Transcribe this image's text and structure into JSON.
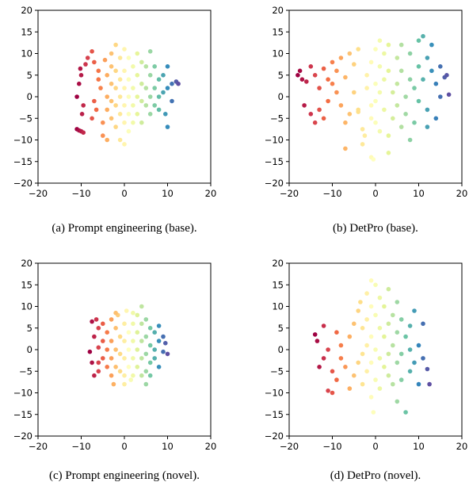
{
  "chart_data": [
    {
      "type": "scatter",
      "caption": "(a) Prompt engineering (base).",
      "xlim": [
        -20,
        20
      ],
      "ylim": [
        -20,
        20
      ],
      "xticks": [
        -20,
        -10,
        0,
        10,
        20
      ],
      "yticks": [
        -20,
        -15,
        -10,
        -5,
        0,
        5,
        10,
        15,
        20
      ],
      "grid": false,
      "colormap": "Spectral",
      "points": [
        [
          -11,
          -7.5
        ],
        [
          -10.5,
          -7.8
        ],
        [
          -10,
          -8
        ],
        [
          -9.5,
          -8.3
        ],
        [
          -11,
          0
        ],
        [
          -10.5,
          3
        ],
        [
          -10,
          5
        ],
        [
          -10.2,
          6.5
        ],
        [
          -9,
          7.5
        ],
        [
          -9.5,
          -2
        ],
        [
          -9.8,
          -4
        ],
        [
          -8.5,
          9
        ],
        [
          -7.5,
          10.5
        ],
        [
          -7,
          8
        ],
        [
          -7,
          -1
        ],
        [
          -7.5,
          -5
        ],
        [
          -6,
          4
        ],
        [
          -6,
          6
        ],
        [
          -5.5,
          2
        ],
        [
          -6.5,
          -3
        ],
        [
          -5,
          -6
        ],
        [
          -4,
          -10
        ],
        [
          -5,
          -9
        ],
        [
          -4.5,
          8.5
        ],
        [
          -4,
          5
        ],
        [
          -4,
          0
        ],
        [
          -4,
          -3
        ],
        [
          -3,
          10
        ],
        [
          -3,
          7
        ],
        [
          -3,
          3
        ],
        [
          -3,
          -1
        ],
        [
          -3,
          -5
        ],
        [
          -2,
          12
        ],
        [
          -2,
          6
        ],
        [
          -2,
          2
        ],
        [
          -2,
          -2
        ],
        [
          -2,
          -7
        ],
        [
          -1,
          9
        ],
        [
          -1,
          4
        ],
        [
          -1,
          0
        ],
        [
          -1,
          -4
        ],
        [
          -1,
          -10
        ],
        [
          0,
          11
        ],
        [
          0,
          6
        ],
        [
          0,
          2
        ],
        [
          0,
          -2
        ],
        [
          0,
          -6
        ],
        [
          0,
          -11
        ],
        [
          1,
          9
        ],
        [
          1,
          4
        ],
        [
          1,
          0
        ],
        [
          1,
          -4
        ],
        [
          1,
          -8
        ],
        [
          2,
          7
        ],
        [
          2,
          2
        ],
        [
          2,
          -2
        ],
        [
          2,
          -6
        ],
        [
          3,
          10
        ],
        [
          3,
          5
        ],
        [
          3,
          0
        ],
        [
          3,
          -4
        ],
        [
          4,
          8
        ],
        [
          4,
          3
        ],
        [
          4,
          -1
        ],
        [
          4,
          -6
        ],
        [
          5,
          7
        ],
        [
          5,
          2
        ],
        [
          5,
          -2
        ],
        [
          6,
          10.5
        ],
        [
          6,
          5
        ],
        [
          6,
          0
        ],
        [
          6,
          -4
        ],
        [
          7,
          7
        ],
        [
          7,
          2
        ],
        [
          7,
          -2
        ],
        [
          8,
          4
        ],
        [
          8,
          0
        ],
        [
          8,
          -3
        ],
        [
          9,
          5
        ],
        [
          9,
          1
        ],
        [
          9.5,
          -4
        ],
        [
          10,
          7
        ],
        [
          10,
          2
        ],
        [
          11,
          3
        ],
        [
          12,
          3.5
        ],
        [
          12.5,
          3
        ],
        [
          10,
          -7
        ],
        [
          11,
          -1
        ]
      ]
    },
    {
      "type": "scatter",
      "caption": "(b) DetPro (base).",
      "xlim": [
        -20,
        20
      ],
      "ylim": [
        -20,
        20
      ],
      "xticks": [
        -20,
        -10,
        0,
        10,
        20
      ],
      "yticks": [
        -20,
        -15,
        -10,
        -5,
        0,
        5,
        10,
        15,
        20
      ],
      "grid": false,
      "colormap": "Spectral",
      "points": [
        [
          -18,
          5
        ],
        [
          -17.5,
          6
        ],
        [
          -17,
          4
        ],
        [
          -16,
          3.5
        ],
        [
          -16.5,
          -2
        ],
        [
          -15,
          -4
        ],
        [
          -14,
          -6
        ],
        [
          -15,
          7
        ],
        [
          -14,
          5
        ],
        [
          -13,
          2
        ],
        [
          -12,
          6.5
        ],
        [
          -12,
          -5
        ],
        [
          -11,
          4
        ],
        [
          -10,
          3
        ],
        [
          -10,
          8
        ],
        [
          -9,
          6
        ],
        [
          -9,
          1
        ],
        [
          -8,
          -2
        ],
        [
          -7,
          4.5
        ],
        [
          -7,
          -6
        ],
        [
          -6,
          -4
        ],
        [
          -5,
          1
        ],
        [
          -6,
          10
        ],
        [
          -5,
          7.5
        ],
        [
          -4,
          11
        ],
        [
          -4,
          -3
        ],
        [
          -3,
          -7.5
        ],
        [
          -7,
          -12
        ],
        [
          -2.5,
          -9
        ],
        [
          -4,
          -3.5
        ],
        [
          -2,
          2
        ],
        [
          -2,
          5
        ],
        [
          -1,
          8
        ],
        [
          -1,
          -2
        ],
        [
          -1,
          -5
        ],
        [
          0,
          11
        ],
        [
          0,
          3
        ],
        [
          0,
          -1
        ],
        [
          0,
          -6
        ],
        [
          -1,
          -14
        ],
        [
          -0.5,
          -14.5
        ],
        [
          1,
          13
        ],
        [
          1,
          7
        ],
        [
          1,
          1
        ],
        [
          1,
          -8
        ],
        [
          2,
          10
        ],
        [
          2,
          4
        ],
        [
          2,
          -3
        ],
        [
          3,
          12
        ],
        [
          3,
          -9
        ],
        [
          3,
          6
        ],
        [
          4,
          1
        ],
        [
          4,
          -5
        ],
        [
          5,
          9
        ],
        [
          5,
          3
        ],
        [
          5,
          -2
        ],
        [
          6,
          12
        ],
        [
          6,
          6
        ],
        [
          6,
          -7
        ],
        [
          7,
          0
        ],
        [
          7,
          -4
        ],
        [
          8,
          10
        ],
        [
          8,
          4
        ],
        [
          8,
          -10
        ],
        [
          9,
          2
        ],
        [
          9,
          -6
        ],
        [
          10,
          13
        ],
        [
          10,
          7
        ],
        [
          10,
          -1
        ],
        [
          11,
          14
        ],
        [
          11,
          4
        ],
        [
          12,
          9
        ],
        [
          12,
          -3
        ],
        [
          13,
          12
        ],
        [
          13,
          6
        ],
        [
          14,
          3
        ],
        [
          14,
          -5
        ],
        [
          15,
          7
        ],
        [
          16,
          4.5
        ],
        [
          16.5,
          5
        ],
        [
          17,
          0.5
        ],
        [
          -13,
          -3
        ],
        [
          -11,
          -1
        ],
        [
          -8,
          9
        ],
        [
          -3,
          -11
        ],
        [
          3,
          -13
        ],
        [
          15,
          0
        ],
        [
          12,
          -7
        ]
      ]
    },
    {
      "type": "scatter",
      "caption": "(c) Prompt engineering (novel).",
      "xlim": [
        -20,
        20
      ],
      "ylim": [
        -20,
        20
      ],
      "xticks": [
        -20,
        -10,
        0,
        10,
        20
      ],
      "yticks": [
        -20,
        -15,
        -10,
        -5,
        0,
        5,
        10,
        15,
        20
      ],
      "grid": false,
      "colormap": "Spectral",
      "points": [
        [
          -8,
          -0.5
        ],
        [
          -7.5,
          6.5
        ],
        [
          -7,
          -6
        ],
        [
          -7,
          3
        ],
        [
          -6.5,
          7
        ],
        [
          -6,
          5
        ],
        [
          -6,
          -3
        ],
        [
          -6,
          0.5
        ],
        [
          -5,
          6
        ],
        [
          -5,
          2
        ],
        [
          -5,
          -2
        ],
        [
          -4,
          4
        ],
        [
          -4,
          0
        ],
        [
          -4,
          -4
        ],
        [
          -3,
          7
        ],
        [
          -3,
          2
        ],
        [
          -3,
          -2
        ],
        [
          -3,
          -6
        ],
        [
          -2.5,
          -8
        ],
        [
          -2,
          5
        ],
        [
          -2,
          0
        ],
        [
          -2,
          -4
        ],
        [
          -1.5,
          8
        ],
        [
          -1,
          3
        ],
        [
          -1,
          -1
        ],
        [
          -1,
          -5
        ],
        [
          0,
          6
        ],
        [
          0,
          2
        ],
        [
          0,
          -2
        ],
        [
          0,
          -6
        ],
        [
          0.5,
          9
        ],
        [
          1,
          4
        ],
        [
          1,
          0
        ],
        [
          1,
          -4
        ],
        [
          1.5,
          -7
        ],
        [
          2,
          6
        ],
        [
          2,
          2
        ],
        [
          2,
          -2
        ],
        [
          2,
          -6
        ],
        [
          3,
          8
        ],
        [
          3,
          4
        ],
        [
          3,
          0
        ],
        [
          3,
          -4
        ],
        [
          4,
          10
        ],
        [
          4,
          6
        ],
        [
          4,
          2
        ],
        [
          4,
          -2
        ],
        [
          4,
          -6
        ],
        [
          5,
          7
        ],
        [
          5,
          3
        ],
        [
          5,
          -1
        ],
        [
          5,
          -5
        ],
        [
          6,
          5
        ],
        [
          6,
          1
        ],
        [
          6,
          -3
        ],
        [
          7,
          4
        ],
        [
          7,
          0
        ],
        [
          7,
          -2
        ],
        [
          8,
          5.5
        ],
        [
          8,
          2
        ],
        [
          8,
          -4
        ],
        [
          9,
          3
        ],
        [
          9,
          -0.5
        ],
        [
          9.5,
          1.5
        ],
        [
          10,
          -1
        ],
        [
          -2,
          8.5
        ],
        [
          2,
          8.5
        ],
        [
          -7.5,
          -3
        ],
        [
          -6,
          -5
        ],
        [
          6,
          -6
        ],
        [
          5,
          -8
        ],
        [
          0,
          -8
        ]
      ]
    },
    {
      "type": "scatter",
      "caption": "(d) DetPro (novel).",
      "xlim": [
        -20,
        20
      ],
      "ylim": [
        -20,
        20
      ],
      "xticks": [
        -20,
        -10,
        0,
        10,
        20
      ],
      "yticks": [
        -20,
        -15,
        -10,
        -5,
        0,
        5,
        10,
        15,
        20
      ],
      "grid": false,
      "colormap": "Spectral",
      "points": [
        [
          -14,
          3.5
        ],
        [
          -13.5,
          2
        ],
        [
          -13,
          -4
        ],
        [
          -12,
          -2
        ],
        [
          -12,
          5.5
        ],
        [
          -11,
          0
        ],
        [
          -11,
          -9.5
        ],
        [
          -10,
          -10
        ],
        [
          -10,
          -5
        ],
        [
          -9,
          -7
        ],
        [
          -8,
          -2
        ],
        [
          -8,
          1
        ],
        [
          -7,
          -4
        ],
        [
          -6,
          -9
        ],
        [
          -6,
          3
        ],
        [
          -5,
          6
        ],
        [
          -5,
          -6
        ],
        [
          -4,
          -3
        ],
        [
          -4,
          9
        ],
        [
          -3.5,
          11
        ],
        [
          -3,
          5
        ],
        [
          -3,
          -1
        ],
        [
          -3,
          -8
        ],
        [
          -2,
          13
        ],
        [
          -2,
          7
        ],
        [
          -2,
          1
        ],
        [
          -2,
          -5
        ],
        [
          -1,
          16
        ],
        [
          -1,
          10
        ],
        [
          -1,
          3
        ],
        [
          -1,
          -3
        ],
        [
          -1,
          -11
        ],
        [
          0,
          15
        ],
        [
          0,
          8
        ],
        [
          0,
          0
        ],
        [
          0,
          -7
        ],
        [
          -0.5,
          -14.5
        ],
        [
          1,
          12
        ],
        [
          1,
          5
        ],
        [
          1,
          -2
        ],
        [
          1,
          -9
        ],
        [
          2,
          10
        ],
        [
          2,
          3
        ],
        [
          2,
          -4
        ],
        [
          3,
          14
        ],
        [
          3,
          6
        ],
        [
          3,
          -1
        ],
        [
          3,
          -6
        ],
        [
          4,
          8
        ],
        [
          4,
          1
        ],
        [
          4,
          -8
        ],
        [
          5,
          11
        ],
        [
          5,
          4
        ],
        [
          5,
          -3
        ],
        [
          6,
          7
        ],
        [
          6,
          -1
        ],
        [
          6,
          -7
        ],
        [
          7,
          3
        ],
        [
          7,
          -14.5
        ],
        [
          8,
          5.5
        ],
        [
          8,
          0
        ],
        [
          8,
          -5
        ],
        [
          9,
          9
        ],
        [
          9,
          -3
        ],
        [
          10,
          1
        ],
        [
          10,
          -8
        ],
        [
          11,
          6
        ],
        [
          11,
          -2
        ],
        [
          12,
          -4.5
        ],
        [
          12.5,
          -8
        ],
        [
          -9,
          4
        ],
        [
          5,
          -12
        ]
      ]
    }
  ]
}
